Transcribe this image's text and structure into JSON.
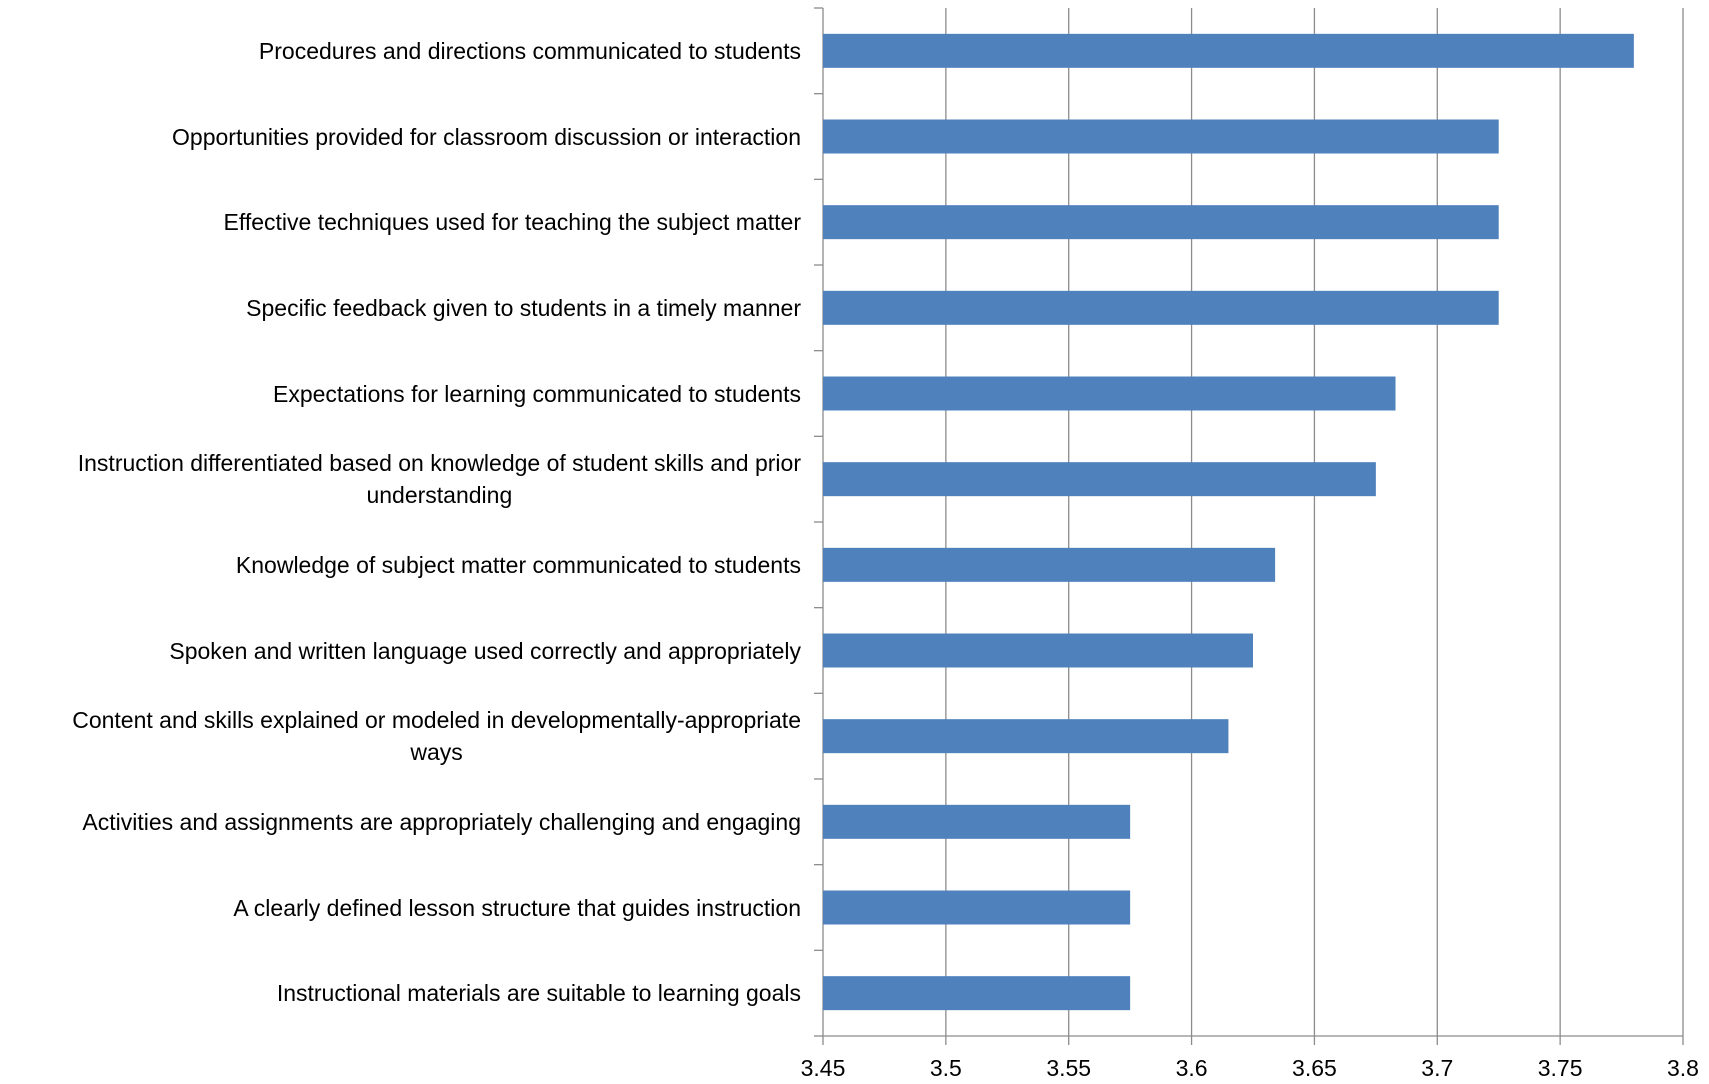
{
  "chart_data": {
    "type": "bar",
    "orientation": "horizontal",
    "categories": [
      "Procedures and directions communicated to students",
      "Opportunities provided for classroom discussion or interaction",
      "Effective techniques used for teaching the subject matter",
      "Specific feedback given to students in a timely manner",
      "Expectations for learning communicated to students",
      "Instruction differentiated based on knowledge of student skills and prior understanding",
      "Knowledge of subject matter communicated to students",
      "Spoken and written language used correctly and appropriately",
      "Content and skills explained or modeled in developmentally-appropriate ways",
      "Activities and assignments are appropriately challenging and engaging",
      "A clearly defined lesson structure that guides instruction",
      "Instructional materials are suitable to learning goals"
    ],
    "label_lines": [
      [
        "Procedures and directions communicated to students"
      ],
      [
        "Opportunities provided for classroom discussion or interaction"
      ],
      [
        "Effective techniques used for teaching the subject matter"
      ],
      [
        "Specific feedback given to students in a timely manner"
      ],
      [
        "Expectations for learning communicated to students"
      ],
      [
        "Instruction differentiated based on knowledge of student skills and prior",
        "understanding"
      ],
      [
        "Knowledge of subject matter communicated to students"
      ],
      [
        "Spoken and written language used correctly and appropriately"
      ],
      [
        "Content and skills explained or modeled in developmentally-appropriate",
        "ways"
      ],
      [
        "Activities and assignments are appropriately challenging and engaging"
      ],
      [
        "A clearly defined lesson structure that guides instruction"
      ],
      [
        "Instructional materials are suitable to learning goals"
      ]
    ],
    "values": [
      3.78,
      3.725,
      3.725,
      3.725,
      3.683,
      3.675,
      3.634,
      3.625,
      3.615,
      3.575,
      3.575,
      3.575
    ],
    "xlim": [
      3.45,
      3.8
    ],
    "xticks": [
      "3.45",
      "3.5",
      "3.55",
      "3.6",
      "3.65",
      "3.7",
      "3.75",
      "3.8"
    ],
    "grid": true,
    "bar_color": "#4f81bd",
    "grid_color": "#8c8c8c",
    "axis_color": "#8c8c8c",
    "title": "",
    "xlabel": "",
    "ylabel": ""
  }
}
